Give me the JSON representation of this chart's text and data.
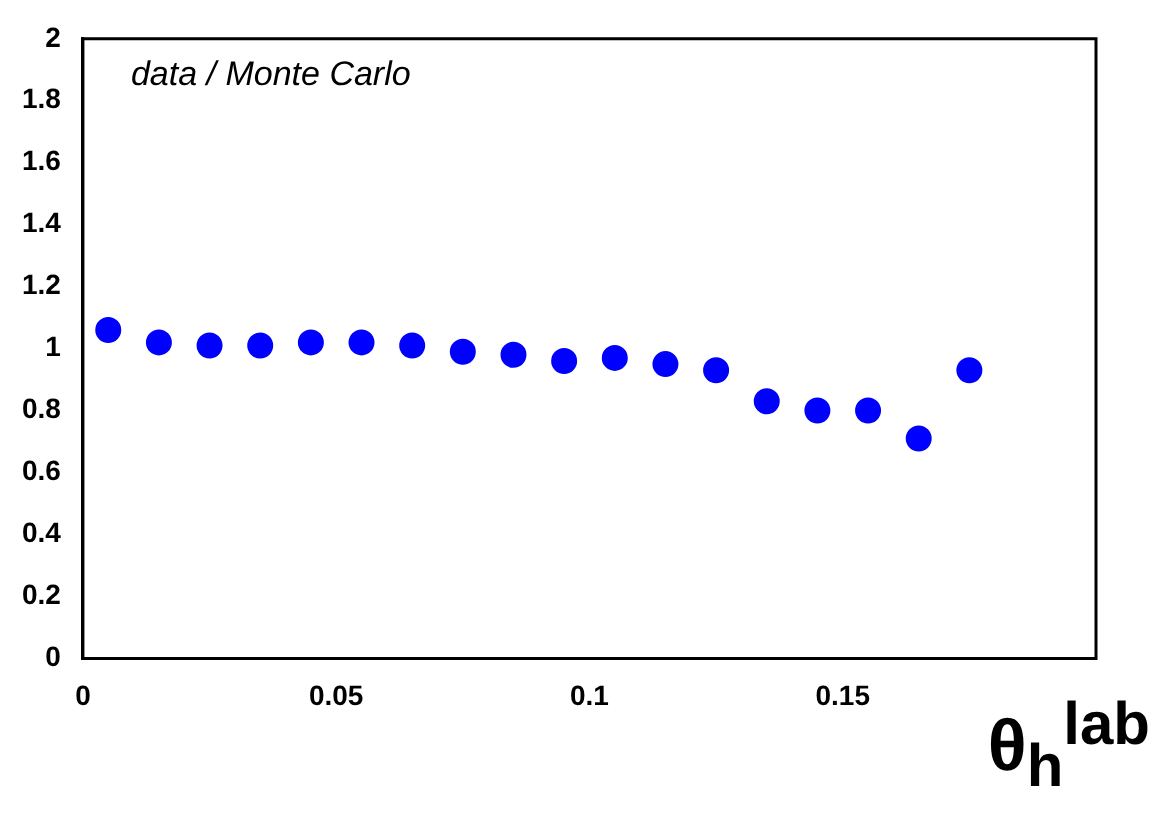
{
  "chart_data": {
    "type": "scatter",
    "xlabel": "θ$_{h}$$^{lab}$",
    "annotations": [
      "data / Monte Carlo"
    ],
    "x": [
      0.005,
      0.015,
      0.025,
      0.035,
      0.045,
      0.055,
      0.065,
      0.075,
      0.085,
      0.095,
      0.105,
      0.115,
      0.125,
      0.135,
      0.145,
      0.155,
      0.165,
      0.175
    ],
    "series": [
      {
        "color": "#0000ff",
        "values": [
          1.06,
          1.02,
          1.01,
          1.01,
          1.02,
          1.02,
          1.01,
          0.99,
          0.98,
          0.96,
          0.97,
          0.95,
          0.93,
          0.83,
          0.8,
          0.8,
          0.71,
          0.93
        ]
      }
    ],
    "xlim": [
      0,
      0.2
    ],
    "ylim": [
      0,
      2
    ],
    "xticks": [
      0,
      0.05,
      0.1,
      0.15
    ],
    "yticks": [
      0,
      0.2,
      0.4,
      0.6,
      0.8,
      1,
      1.2,
      1.4,
      1.6,
      1.8,
      2
    ],
    "grid": false,
    "legend": false,
    "marker": "circle"
  }
}
